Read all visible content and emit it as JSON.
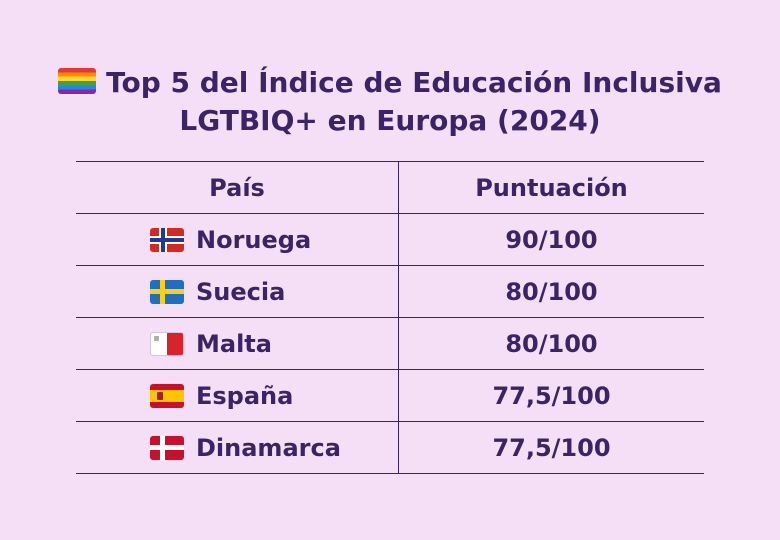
{
  "title": {
    "icon": "rainbow-flag-icon",
    "line1": "Top 5 del Índice de Educación Inclusiva",
    "line2": "LGTBIQ+ en Europa (2024)"
  },
  "table": {
    "headers": {
      "country": "País",
      "score": "Puntuación"
    },
    "rows": [
      {
        "flag": "norway-flag-icon",
        "country": "Noruega",
        "score": "90/100"
      },
      {
        "flag": "sweden-flag-icon",
        "country": "Suecia",
        "score": "80/100"
      },
      {
        "flag": "malta-flag-icon",
        "country": "Malta",
        "score": "80/100"
      },
      {
        "flag": "spain-flag-icon",
        "country": "España",
        "score": "77,5/100"
      },
      {
        "flag": "denmark-flag-icon",
        "country": "Dinamarca",
        "score": "77,5/100"
      }
    ]
  },
  "colors": {
    "background": "#f5dff7",
    "text": "#3a2466"
  }
}
